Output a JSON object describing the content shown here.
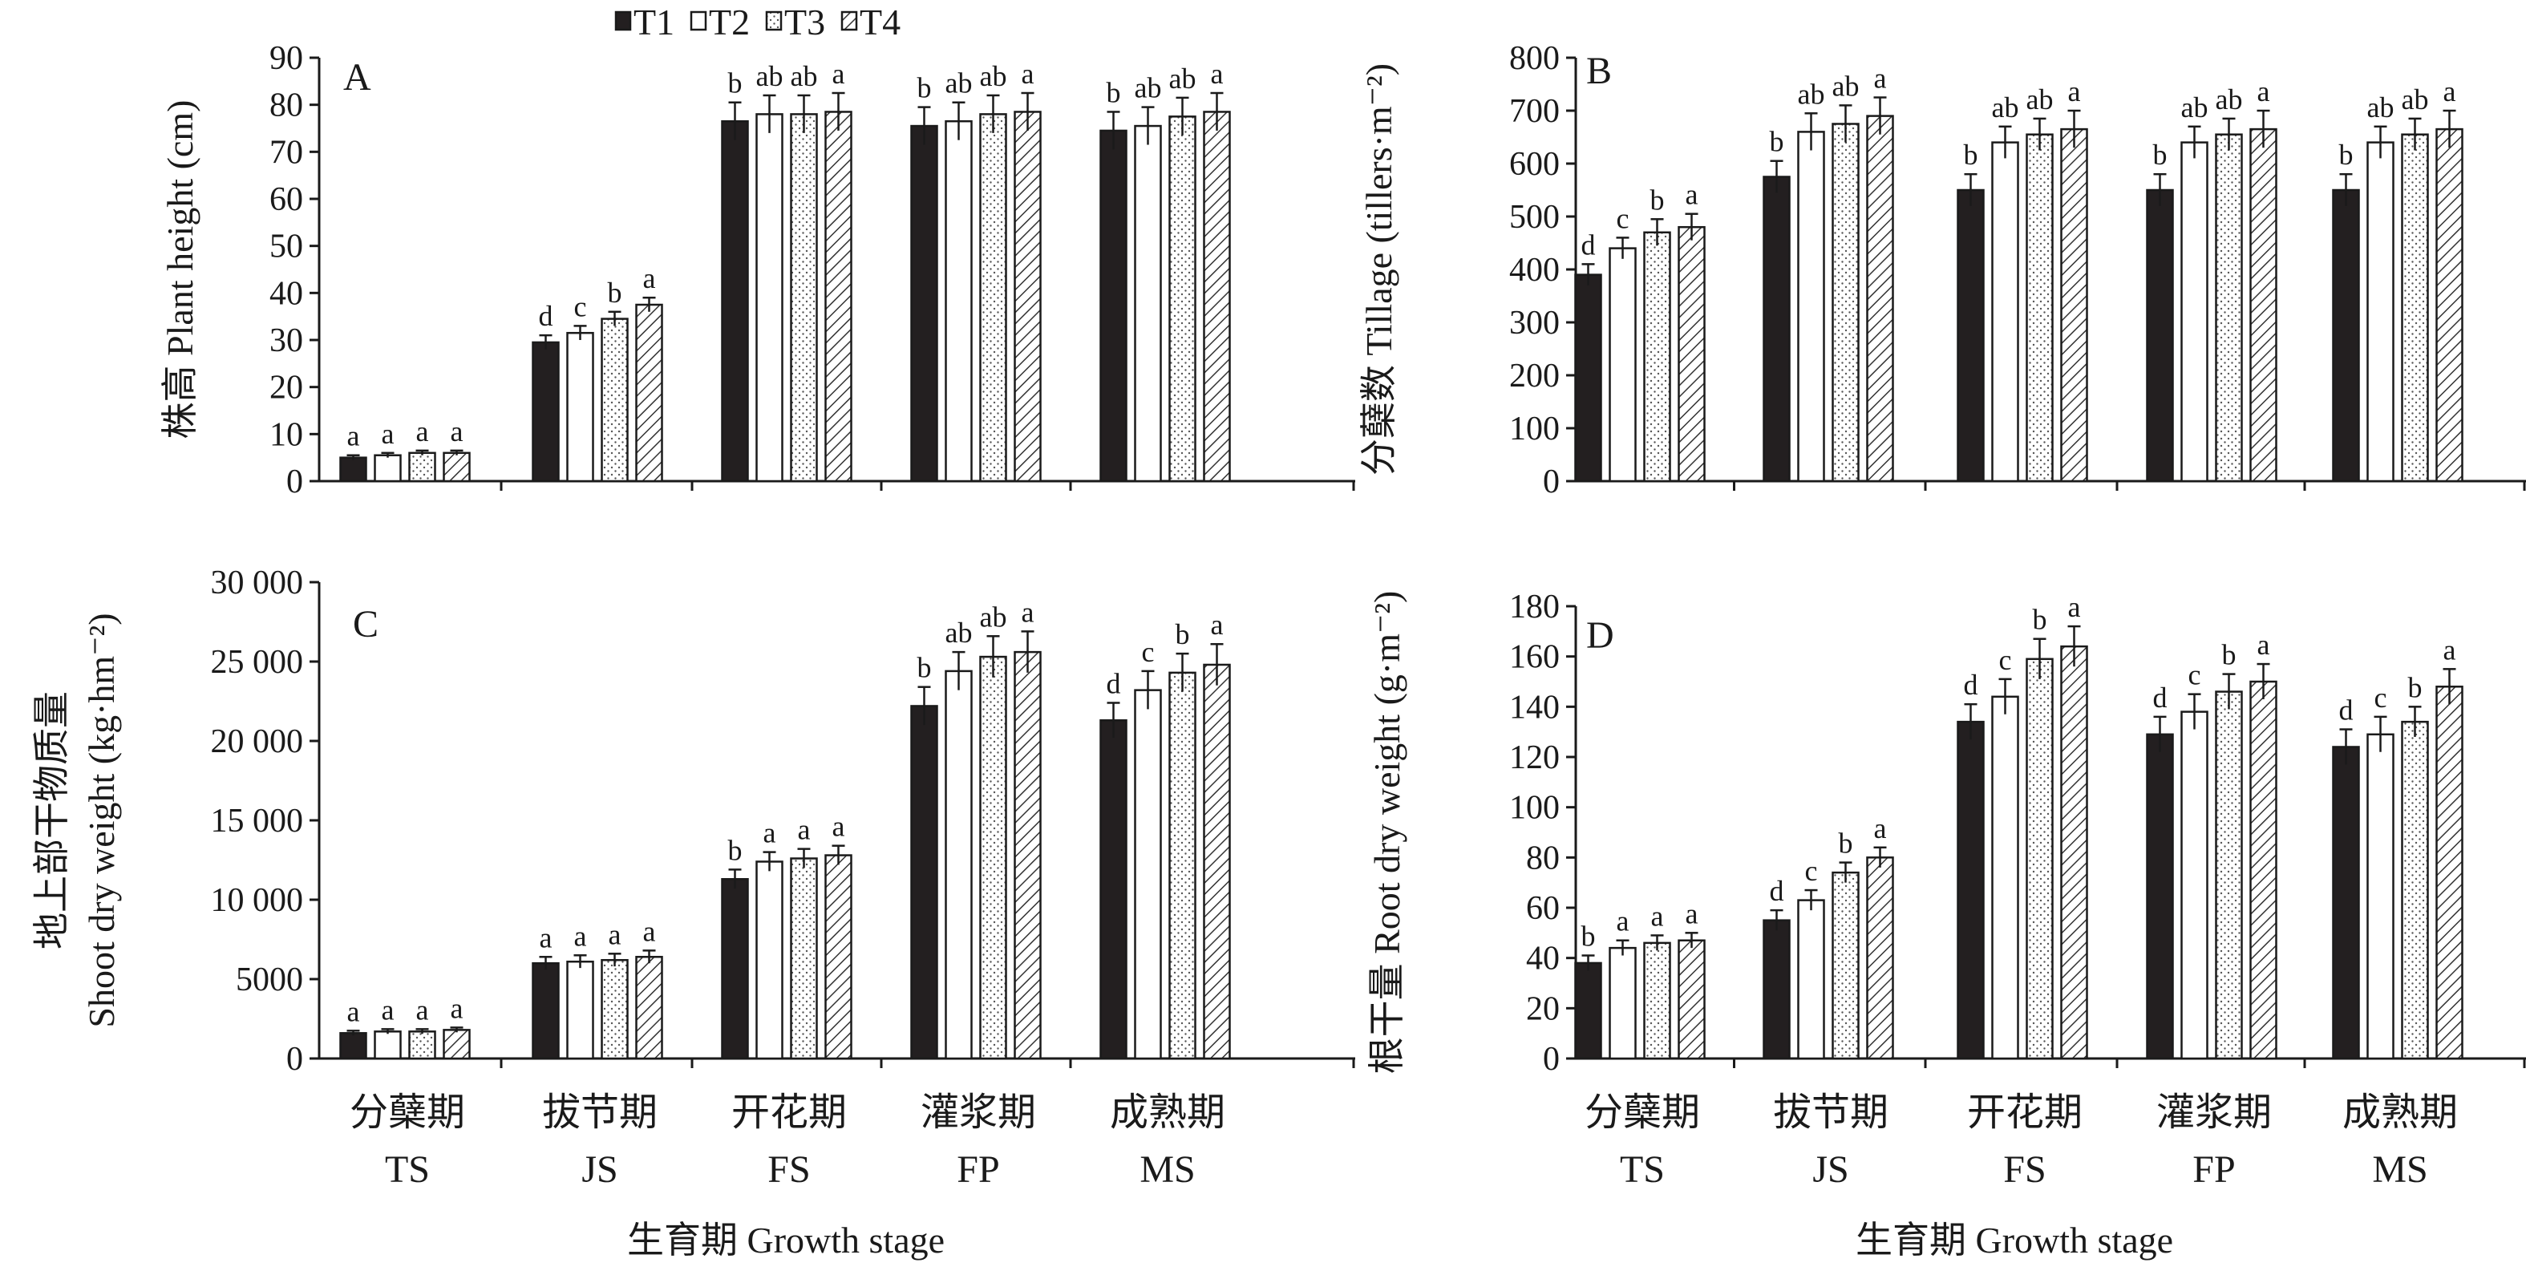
{
  "legend": [
    {
      "name": "T1",
      "style": "solid"
    },
    {
      "name": "T2",
      "style": "white"
    },
    {
      "name": "T3",
      "style": "dots"
    },
    {
      "name": "T4",
      "style": "hatch"
    }
  ],
  "categories": [
    {
      "cn": "分蘖期",
      "en": "TS"
    },
    {
      "cn": "拔节期",
      "en": "JS"
    },
    {
      "cn": "开花期",
      "en": "FS"
    },
    {
      "cn": "灌浆期",
      "en": "FP"
    },
    {
      "cn": "成熟期",
      "en": "MS"
    }
  ],
  "xlabel": "生育期 Growth stage",
  "colors": {
    "bar_dark": "#231f20",
    "bar_light": "#ffffff",
    "stroke": "#1a1a1a"
  },
  "chart_data": [
    {
      "type": "bar",
      "panel": "A",
      "ylabel_lines": [
        "株高 Plant height (cm)"
      ],
      "ylim": [
        0,
        90
      ],
      "yticks": [
        0,
        10,
        20,
        30,
        40,
        50,
        60,
        70,
        80,
        90
      ],
      "ytick_labels": [
        "0",
        "10",
        "20",
        "30",
        "40",
        "50",
        "60",
        "70",
        "80",
        "90"
      ],
      "categories": [
        "TS",
        "JS",
        "FS",
        "FP",
        "MS"
      ],
      "series": [
        {
          "name": "T1",
          "values": [
            5.0,
            29.5,
            76.5,
            75.5,
            74.5
          ],
          "errors": [
            0.5,
            1.5,
            4.0,
            4.0,
            4.0
          ],
          "letters": [
            "a",
            "d",
            "b",
            "b",
            "b"
          ]
        },
        {
          "name": "T2",
          "values": [
            5.5,
            31.5,
            78.0,
            76.5,
            75.5
          ],
          "errors": [
            0.5,
            1.5,
            4.0,
            4.0,
            4.0
          ],
          "letters": [
            "a",
            "c",
            "ab",
            "ab",
            "ab"
          ]
        },
        {
          "name": "T3",
          "values": [
            6.0,
            34.5,
            78.0,
            78.0,
            77.5
          ],
          "errors": [
            0.5,
            1.5,
            4.0,
            4.0,
            4.0
          ],
          "letters": [
            "a",
            "b",
            "ab",
            "ab",
            "ab"
          ]
        },
        {
          "name": "T4",
          "values": [
            6.0,
            37.5,
            78.5,
            78.5,
            78.5
          ],
          "errors": [
            0.5,
            1.5,
            4.0,
            4.0,
            4.0
          ],
          "letters": [
            "a",
            "a",
            "a",
            "a",
            "a"
          ]
        }
      ]
    },
    {
      "type": "bar",
      "panel": "B",
      "ylabel_lines": [
        "分蘖数 Tillage (tillers·m⁻²)"
      ],
      "ylim": [
        0,
        800
      ],
      "yticks": [
        0,
        100,
        200,
        300,
        400,
        500,
        600,
        700,
        800
      ],
      "ytick_labels": [
        "0",
        "100",
        "200",
        "300",
        "400",
        "500",
        "600",
        "700",
        "800"
      ],
      "categories": [
        "TS",
        "JS",
        "FS",
        "FP",
        "MS"
      ],
      "series": [
        {
          "name": "T1",
          "values": [
            390,
            575,
            550,
            550,
            550
          ],
          "errors": [
            20,
            30,
            30,
            30,
            30
          ],
          "letters": [
            "d",
            "b",
            "b",
            "b",
            "b"
          ]
        },
        {
          "name": "T2",
          "values": [
            440,
            660,
            640,
            640,
            640
          ],
          "errors": [
            20,
            35,
            30,
            30,
            30
          ],
          "letters": [
            "c",
            "ab",
            "ab",
            "ab",
            "ab"
          ]
        },
        {
          "name": "T3",
          "values": [
            470,
            675,
            655,
            655,
            655
          ],
          "errors": [
            25,
            35,
            30,
            30,
            30
          ],
          "letters": [
            "b",
            "ab",
            "ab",
            "ab",
            "ab"
          ]
        },
        {
          "name": "T4",
          "values": [
            480,
            690,
            665,
            665,
            665
          ],
          "errors": [
            25,
            35,
            35,
            35,
            35
          ],
          "letters": [
            "a",
            "a",
            "a",
            "a",
            "a"
          ]
        }
      ]
    },
    {
      "type": "bar",
      "panel": "C",
      "ylabel_lines": [
        "地上部干物质量",
        "Shoot dry weight (kg·hm⁻²)"
      ],
      "ylim": [
        0,
        30000
      ],
      "yticks": [
        0,
        5000,
        10000,
        15000,
        20000,
        25000,
        30000
      ],
      "ytick_labels": [
        "0",
        "5000",
        "10 000",
        "15 000",
        "20 000",
        "25 000",
        "30 000"
      ],
      "categories": [
        "TS",
        "JS",
        "FS",
        "FP",
        "MS"
      ],
      "series": [
        {
          "name": "T1",
          "values": [
            1600,
            6000,
            11300,
            22200,
            21300
          ],
          "errors": [
            150,
            400,
            600,
            1200,
            1100
          ],
          "letters": [
            "a",
            "a",
            "b",
            "b",
            "d"
          ]
        },
        {
          "name": "T2",
          "values": [
            1700,
            6100,
            12400,
            24400,
            23200
          ],
          "errors": [
            150,
            400,
            600,
            1200,
            1200
          ],
          "letters": [
            "a",
            "a",
            "a",
            "ab",
            "c"
          ]
        },
        {
          "name": "T3",
          "values": [
            1700,
            6200,
            12600,
            25300,
            24300
          ],
          "errors": [
            150,
            400,
            600,
            1300,
            1200
          ],
          "letters": [
            "a",
            "a",
            "a",
            "ab",
            "b"
          ]
        },
        {
          "name": "T4",
          "values": [
            1800,
            6400,
            12800,
            25600,
            24800
          ],
          "errors": [
            150,
            400,
            600,
            1300,
            1300
          ],
          "letters": [
            "a",
            "a",
            "a",
            "a",
            "a"
          ]
        }
      ]
    },
    {
      "type": "bar",
      "panel": "D",
      "ylabel_lines": [
        "根干量 Root dry weight (g·m⁻²)"
      ],
      "ylim": [
        0,
        180
      ],
      "yticks": [
        0,
        20,
        40,
        60,
        80,
        100,
        120,
        140,
        160,
        180
      ],
      "ytick_labels": [
        "0",
        "20",
        "40",
        "60",
        "80",
        "100",
        "120",
        "140",
        "160",
        "180"
      ],
      "categories": [
        "TS",
        "JS",
        "FS",
        "FP",
        "MS"
      ],
      "series": [
        {
          "name": "T1",
          "values": [
            38,
            55,
            134,
            129,
            124
          ],
          "errors": [
            3,
            4,
            7,
            7,
            7
          ],
          "letters": [
            "b",
            "d",
            "d",
            "d",
            "d"
          ]
        },
        {
          "name": "T2",
          "values": [
            44,
            63,
            144,
            138,
            129
          ],
          "errors": [
            3,
            4,
            7,
            7,
            7
          ],
          "letters": [
            "a",
            "c",
            "c",
            "c",
            "c"
          ]
        },
        {
          "name": "T3",
          "values": [
            46,
            74,
            159,
            146,
            134
          ],
          "errors": [
            3,
            4,
            8,
            7,
            6
          ],
          "letters": [
            "a",
            "b",
            "b",
            "b",
            "b"
          ]
        },
        {
          "name": "T4",
          "values": [
            47,
            80,
            164,
            150,
            148
          ],
          "errors": [
            3,
            4,
            8,
            7,
            7
          ],
          "letters": [
            "a",
            "a",
            "a",
            "a",
            "a"
          ]
        }
      ]
    }
  ]
}
